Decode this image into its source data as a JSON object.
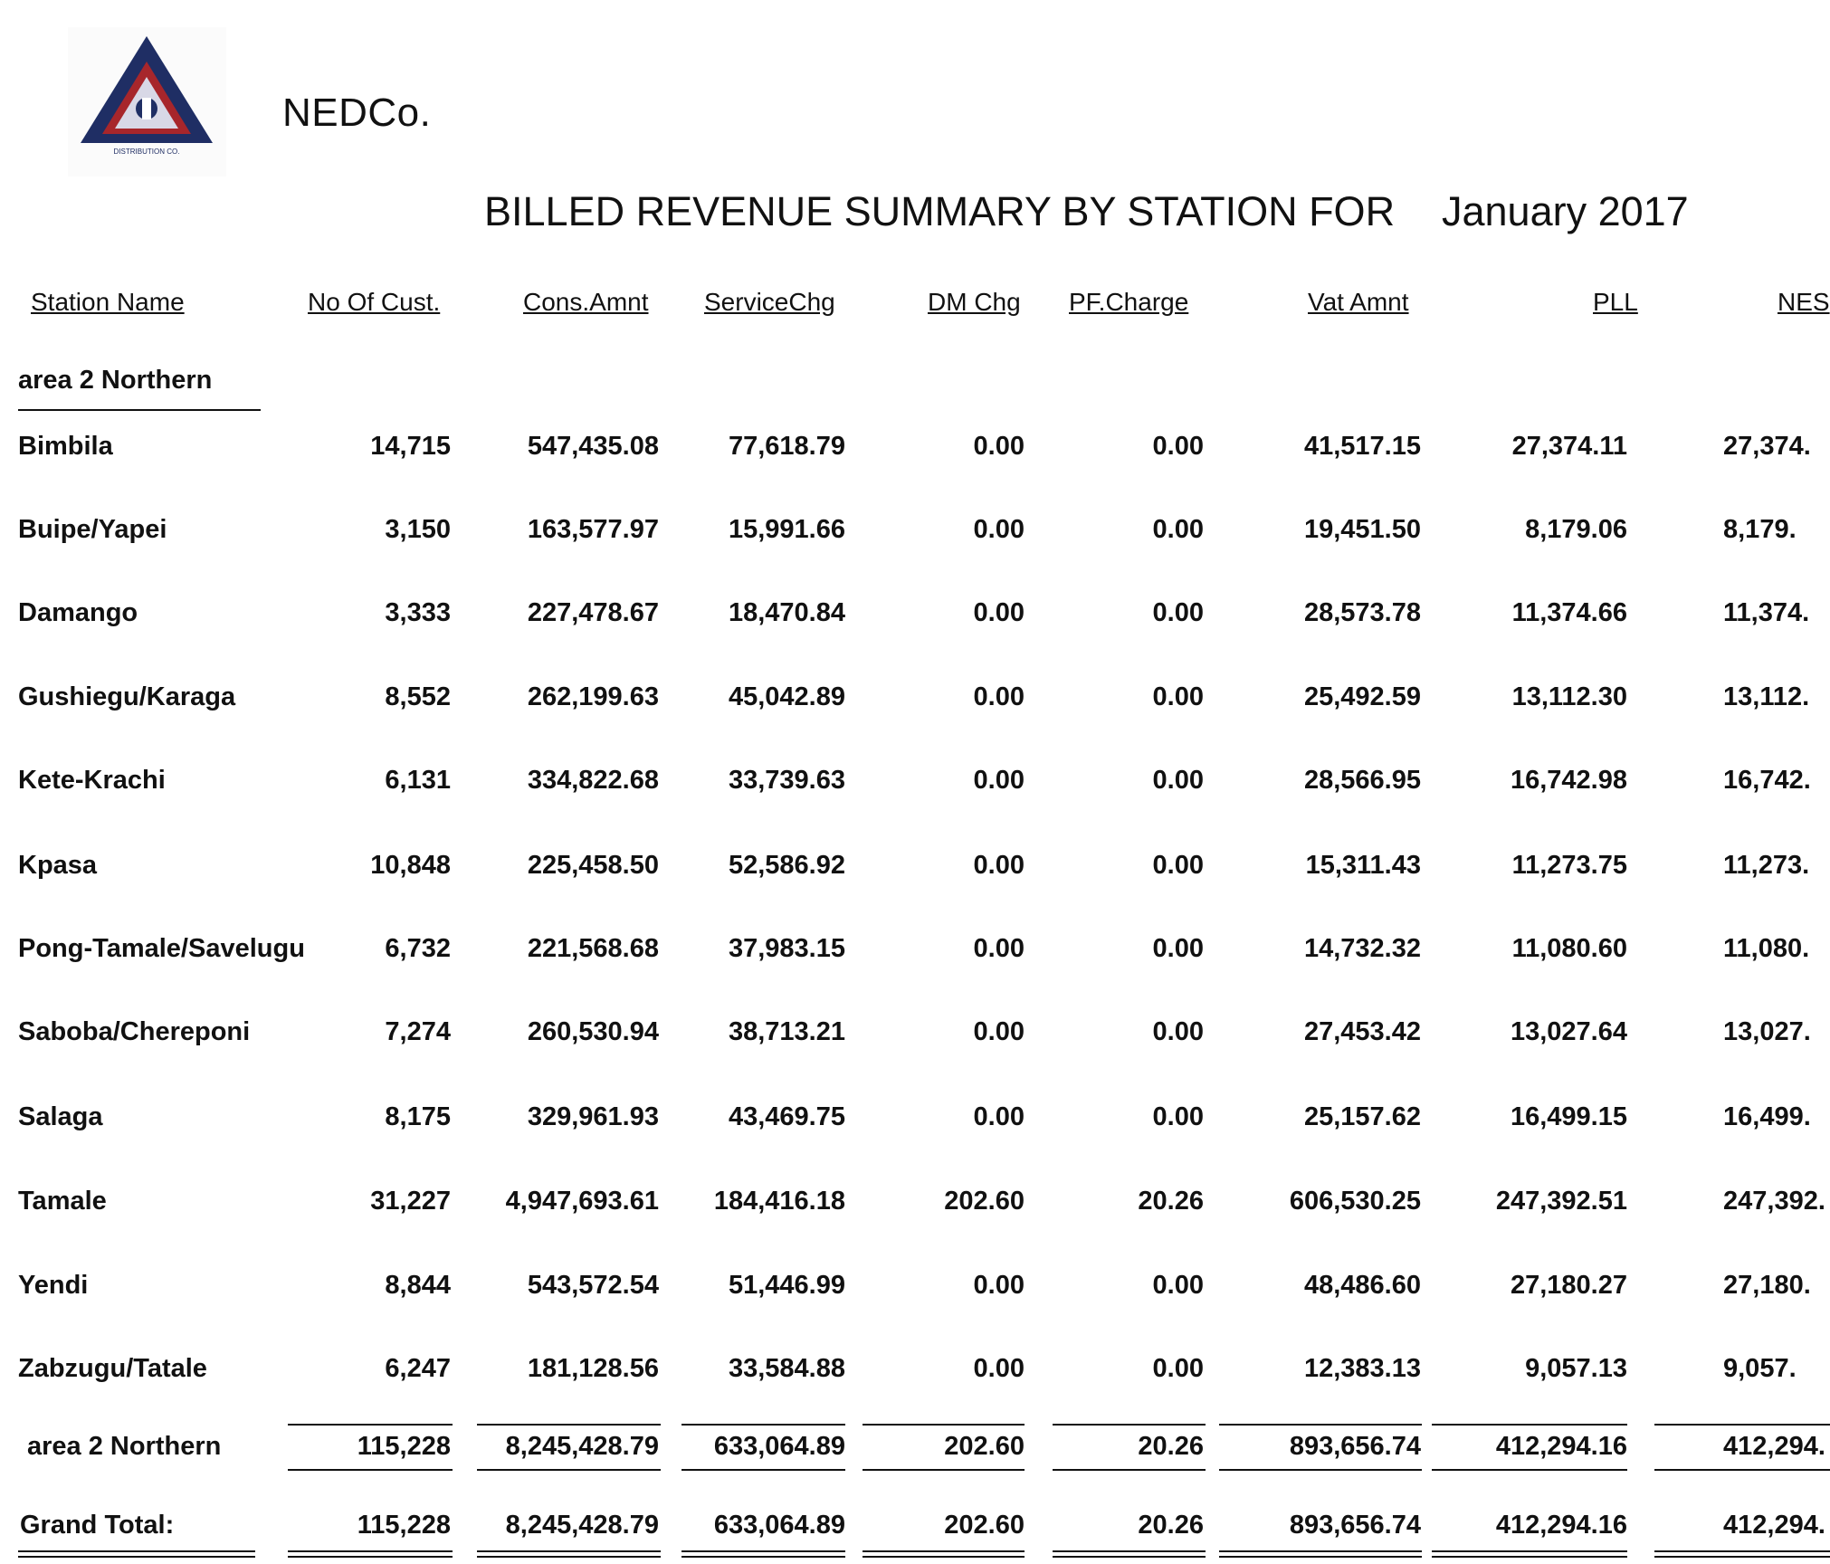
{
  "header": {
    "company": "NEDCo.",
    "report_title": "BILLED REVENUE SUMMARY BY STATION FOR",
    "report_period": "January 2017",
    "logo": {
      "icon": "triangle-logo-icon",
      "primary_color": "#1f2e64",
      "accent_color": "#a7262b"
    }
  },
  "columns": [
    "Station Name",
    "No Of Cust.",
    "Cons.Amnt",
    "ServiceChg",
    "DM Chg",
    "PF.Charge",
    "Vat Amnt",
    "PLL",
    "NES"
  ],
  "group": {
    "name": "area 2 Northern",
    "rows": [
      [
        "Bimbila",
        "14,715",
        "547,435.08",
        "77,618.79",
        "0.00",
        "0.00",
        "41,517.15",
        "27,374.11",
        "27,374."
      ],
      [
        "Buipe/Yapei",
        "3,150",
        "163,577.97",
        "15,991.66",
        "0.00",
        "0.00",
        "19,451.50",
        "8,179.06",
        "8,179."
      ],
      [
        "Damango",
        "3,333",
        "227,478.67",
        "18,470.84",
        "0.00",
        "0.00",
        "28,573.78",
        "11,374.66",
        "11,374."
      ],
      [
        "Gushiegu/Karaga",
        "8,552",
        "262,199.63",
        "45,042.89",
        "0.00",
        "0.00",
        "25,492.59",
        "13,112.30",
        "13,112."
      ],
      [
        "Kete-Krachi",
        "6,131",
        "334,822.68",
        "33,739.63",
        "0.00",
        "0.00",
        "28,566.95",
        "16,742.98",
        "16,742."
      ],
      [
        "Kpasa",
        "10,848",
        "225,458.50",
        "52,586.92",
        "0.00",
        "0.00",
        "15,311.43",
        "11,273.75",
        "11,273."
      ],
      [
        "Pong-Tamale/Savelugu",
        "6,732",
        "221,568.68",
        "37,983.15",
        "0.00",
        "0.00",
        "14,732.32",
        "11,080.60",
        "11,080."
      ],
      [
        "Saboba/Chereponi",
        "7,274",
        "260,530.94",
        "38,713.21",
        "0.00",
        "0.00",
        "27,453.42",
        "13,027.64",
        "13,027."
      ],
      [
        "Salaga",
        "8,175",
        "329,961.93",
        "43,469.75",
        "0.00",
        "0.00",
        "25,157.62",
        "16,499.15",
        "16,499."
      ],
      [
        "Tamale",
        "31,227",
        "4,947,693.61",
        "184,416.18",
        "202.60",
        "20.26",
        "606,530.25",
        "247,392.51",
        "247,392."
      ],
      [
        "Yendi",
        "8,844",
        "543,572.54",
        "51,446.99",
        "0.00",
        "0.00",
        "48,486.60",
        "27,180.27",
        "27,180."
      ],
      [
        "Zabzugu/Tatale",
        "6,247",
        "181,128.56",
        "33,584.88",
        "0.00",
        "0.00",
        "12,383.13",
        "9,057.13",
        "9,057."
      ]
    ],
    "subtotal": [
      "area 2 Northern",
      "115,228",
      "8,245,428.79",
      "633,064.89",
      "202.60",
      "20.26",
      "893,656.74",
      "412,294.16",
      "412,294."
    ]
  },
  "grand_total": [
    "Grand Total:",
    "115,228",
    "8,245,428.79",
    "633,064.89",
    "202.60",
    "20.26",
    "893,656.74",
    "412,294.16",
    "412,294."
  ]
}
